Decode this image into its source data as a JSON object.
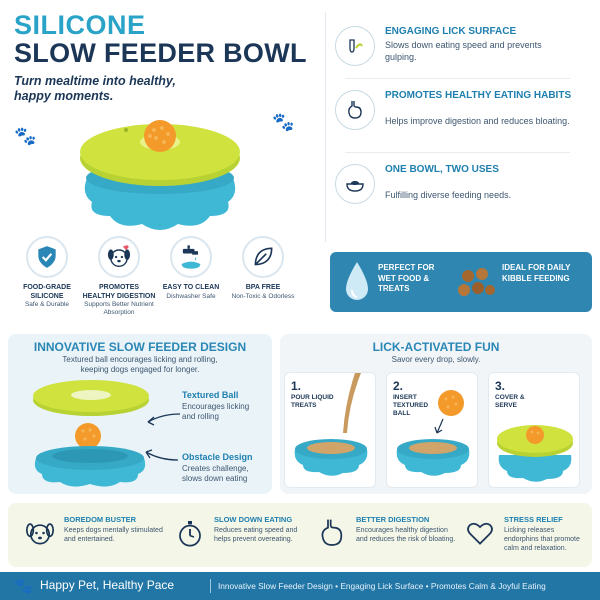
{
  "header": {
    "title_line1": "SILICONE",
    "title_line2": "SLOW FEEDER BOWL",
    "tagline": "Turn mealtime into healthy, happy moments."
  },
  "badges": [
    {
      "title": "FOOD-GRADE SILICONE",
      "desc": "Safe & Durable",
      "icon": "shield-check-icon"
    },
    {
      "title": "PROMOTES HEALTHY DIGESTION",
      "desc": "Supports Better Nutrient Absorption",
      "icon": "dog-face-icon"
    },
    {
      "title": "EASY TO CLEAN",
      "desc": "Dishwasher Safe",
      "icon": "faucet-icon"
    },
    {
      "title": "BPA FREE",
      "desc": "Non-Toxic & Odorless",
      "icon": "leaf-icon"
    }
  ],
  "features": [
    {
      "title": "ENGAGING LICK SURFACE",
      "desc": "Slows down eating speed and prevents gulping.",
      "icon": "tongue-icon"
    },
    {
      "title": "PROMOTES HEALTHY EATING HABITS",
      "desc": "Helps improve digestion and reduces bloating.",
      "icon": "stomach-icon"
    },
    {
      "title": "ONE BOWL, TWO USES",
      "desc": "Fulfilling diverse feeding needs.",
      "icon": "bowl-icon"
    }
  ],
  "banner": {
    "left": "PERFECT FOR WET FOOD & TREATS",
    "right": "IDEAL FOR DAILY KIBBLE FEEDING"
  },
  "design": {
    "title": "INNOVATIVE SLOW FEEDER DESIGN",
    "subtitle": "Textured ball encourages licking and rolling, keeping dogs engaged for longer.",
    "callout1_title": "Textured Ball",
    "callout1_desc": "Encourages licking and rolling",
    "callout2_title": "Obstacle Design",
    "callout2_desc": "Creates challenge, slows down eating"
  },
  "lick": {
    "title": "LICK-ACTIVATED FUN",
    "subtitle": "Savor every drop, slowly.",
    "steps": [
      {
        "num": "1.",
        "text": "POUR LIQUID TREATS"
      },
      {
        "num": "2.",
        "text": "INSERT TEXTURED BALL"
      },
      {
        "num": "3.",
        "text": "COVER & SERVE"
      }
    ]
  },
  "benefits": [
    {
      "title": "BOREDOM BUSTER",
      "desc": "Keeps dogs mentally stimulated and entertained.",
      "icon": "dog-outline-icon"
    },
    {
      "title": "SLOW DOWN EATING",
      "desc": "Reduces eating speed and helps prevent overeating.",
      "icon": "stopwatch-icon"
    },
    {
      "title": "BETTER DIGESTION",
      "desc": "Encourages healthy digestion and reduces the risk of bloating.",
      "icon": "stomach-outline-icon"
    },
    {
      "title": "STRESS RELIEF",
      "desc": "Licking releases endorphins that promote calm and relaxation.",
      "icon": "heart-icon"
    }
  ],
  "footer": {
    "headline": "Happy Pet, Healthy Pace",
    "sub": "Innovative Slow Feeder Design • Engaging Lick Surface • Promotes Calm & Joyful Eating"
  },
  "colors": {
    "accent_blue": "#2aa3c8",
    "navy": "#1b3656",
    "lime": "#c5dc3a",
    "teal_bowl": "#3fb8d6",
    "orange_ball": "#f39a2b",
    "footer_blue": "#2276a6"
  }
}
